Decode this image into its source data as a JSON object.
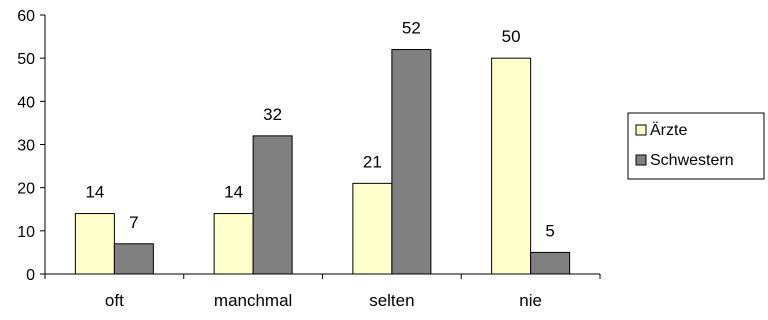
{
  "chart_data": {
    "type": "bar",
    "categories": [
      "oft",
      "manchmal",
      "selten",
      "nie"
    ],
    "series": [
      {
        "name": "Ärzte",
        "values": [
          14,
          14,
          21,
          50
        ],
        "color": "#ffffcc"
      },
      {
        "name": "Schwestern",
        "values": [
          7,
          32,
          52,
          5
        ],
        "color": "#808080"
      }
    ],
    "yticks": [
      0,
      10,
      20,
      30,
      40,
      50,
      60
    ],
    "ylim": [
      0,
      60
    ],
    "grid": false,
    "legend_position": "right"
  }
}
